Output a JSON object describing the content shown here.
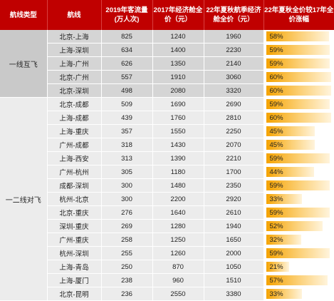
{
  "headers": {
    "category": "航线类型",
    "route": "航线",
    "traffic": "2019年客流量(万人次)",
    "fare2017": "2017年经济舱全价（元）",
    "fare2022": "22年夏秋航季经济舱全价（元）",
    "increase": "22年夏秋全价较17年全价涨幅"
  },
  "groups": [
    {
      "label": "一线互飞",
      "rows": [
        {
          "route": "北京-上海",
          "traffic": "825",
          "fare2017": "1240",
          "fare2022": "1960",
          "increase": "58%",
          "increase_value": 58
        },
        {
          "route": "上海-深圳",
          "traffic": "634",
          "fare2017": "1400",
          "fare2022": "2230",
          "increase": "59%",
          "increase_value": 59
        },
        {
          "route": "上海-广州",
          "traffic": "626",
          "fare2017": "1350",
          "fare2022": "2140",
          "increase": "59%",
          "increase_value": 59
        },
        {
          "route": "北京-广州",
          "traffic": "557",
          "fare2017": "1910",
          "fare2022": "3060",
          "increase": "60%",
          "increase_value": 60
        },
        {
          "route": "北京-深圳",
          "traffic": "498",
          "fare2017": "2080",
          "fare2022": "3320",
          "increase": "60%",
          "increase_value": 60
        }
      ]
    },
    {
      "label": "一二线对飞",
      "rows": [
        {
          "route": "北京-成都",
          "traffic": "509",
          "fare2017": "1690",
          "fare2022": "2690",
          "increase": "59%",
          "increase_value": 59
        },
        {
          "route": "上海-成都",
          "traffic": "439",
          "fare2017": "1760",
          "fare2022": "2810",
          "increase": "60%",
          "increase_value": 60
        },
        {
          "route": "上海-重庆",
          "traffic": "357",
          "fare2017": "1550",
          "fare2022": "2250",
          "increase": "45%",
          "increase_value": 45
        },
        {
          "route": "广州-成都",
          "traffic": "318",
          "fare2017": "1430",
          "fare2022": "2070",
          "increase": "45%",
          "increase_value": 45
        },
        {
          "route": "上海-西安",
          "traffic": "313",
          "fare2017": "1390",
          "fare2022": "2210",
          "increase": "59%",
          "increase_value": 59
        },
        {
          "route": "广州-杭州",
          "traffic": "305",
          "fare2017": "1180",
          "fare2022": "1700",
          "increase": "44%",
          "increase_value": 44
        },
        {
          "route": "成都-深圳",
          "traffic": "300",
          "fare2017": "1480",
          "fare2022": "2350",
          "increase": "59%",
          "increase_value": 59
        },
        {
          "route": "杭州-北京",
          "traffic": "300",
          "fare2017": "2200",
          "fare2022": "2920",
          "increase": "33%",
          "increase_value": 33
        },
        {
          "route": "北京-重庆",
          "traffic": "276",
          "fare2017": "1640",
          "fare2022": "2610",
          "increase": "59%",
          "increase_value": 59
        },
        {
          "route": "深圳-重庆",
          "traffic": "269",
          "fare2017": "1280",
          "fare2022": "1940",
          "increase": "52%",
          "increase_value": 52
        },
        {
          "route": "广州-重庆",
          "traffic": "258",
          "fare2017": "1250",
          "fare2022": "1650",
          "increase": "32%",
          "increase_value": 32
        },
        {
          "route": "杭州-深圳",
          "traffic": "255",
          "fare2017": "1260",
          "fare2022": "2000",
          "increase": "59%",
          "increase_value": 59
        },
        {
          "route": "上海-青岛",
          "traffic": "250",
          "fare2017": "870",
          "fare2022": "1050",
          "increase": "21%",
          "increase_value": 21
        },
        {
          "route": "上海-厦门",
          "traffic": "238",
          "fare2017": "960",
          "fare2022": "1510",
          "increase": "57%",
          "increase_value": 57
        },
        {
          "route": "北京-昆明",
          "traffic": "236",
          "fare2017": "2550",
          "fare2022": "3380",
          "increase": "33%",
          "increase_value": 33
        }
      ]
    }
  ],
  "colors": {
    "header_bg": "#c00000",
    "bar_start": "#f5a300",
    "bar_end": "#fff4dc"
  }
}
